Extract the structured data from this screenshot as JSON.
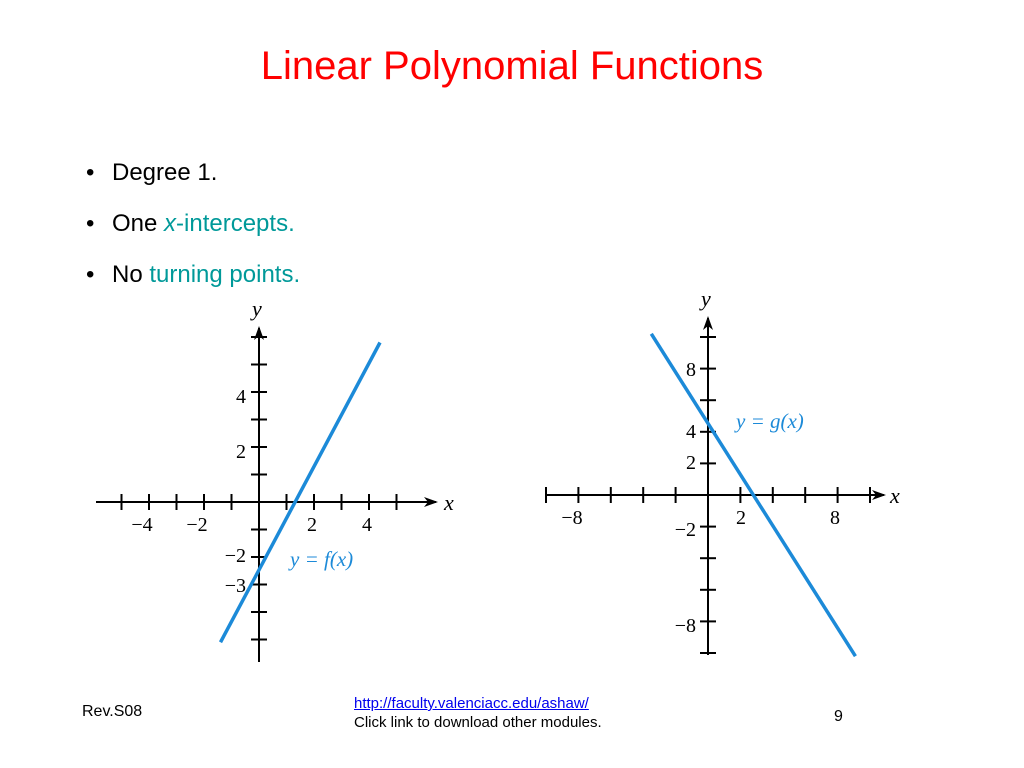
{
  "slide": {
    "title": "Linear Polynomial Functions",
    "bullets": [
      {
        "prefix": "Degree 1.",
        "var": "",
        "highlight": ""
      },
      {
        "prefix": "One ",
        "var": "x",
        "highlight": "-intercepts."
      },
      {
        "prefix": "No ",
        "var": "",
        "highlight": "turning points."
      }
    ],
    "highlight_color": "#009999",
    "title_color": "#ff0000"
  },
  "footer": {
    "revision": "Rev.S08",
    "link": "http://faculty.valenciacc.edu/ashaw/",
    "link_note": "Click link to download other modules.",
    "page_number": "9"
  },
  "chart_data": [
    {
      "type": "line",
      "function_label": "y = f(x)",
      "xlabel": "x",
      "ylabel": "y",
      "x_tick_labels": [
        "−4",
        "−2",
        "2",
        "4"
      ],
      "y_tick_labels": [
        "4",
        "2",
        "−2",
        "−3"
      ],
      "series": [
        {
          "x": [
            -1.4,
            4.4
          ],
          "y": [
            -5.1,
            5.8
          ]
        }
      ],
      "line_color": "#1c8ad8"
    },
    {
      "type": "line",
      "function_label": "y = g(x)",
      "xlabel": "x",
      "ylabel": "y",
      "x_tick_labels": [
        "−8",
        "2",
        "8"
      ],
      "y_tick_labels": [
        "8",
        "4",
        "2",
        "−2",
        "−8"
      ],
      "series": [
        {
          "x": [
            -3.5,
            9.1
          ],
          "y": [
            10.2,
            -10.2
          ]
        }
      ],
      "line_color": "#1c8ad8"
    }
  ]
}
